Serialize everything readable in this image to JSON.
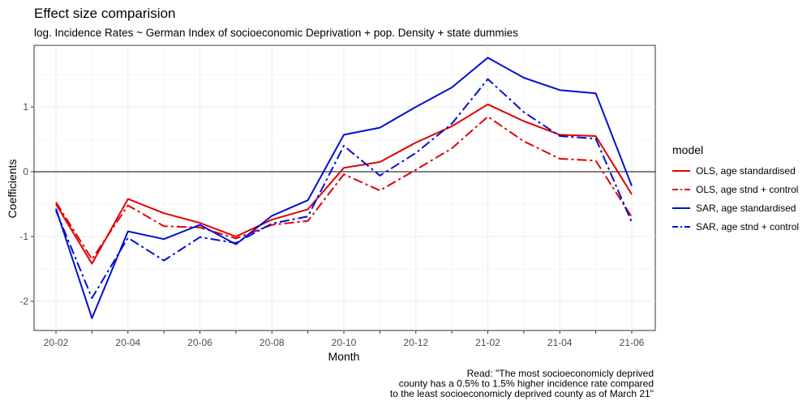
{
  "chart_data": {
    "type": "line",
    "title": "Effect size comparision",
    "subtitle": "log. Incidence Rates ~ German Index of socioeconomic Deprivation + pop. Density + state dummies",
    "xlabel": "Month",
    "ylabel": "Coefficients",
    "x": [
      "20-02",
      "20-03",
      "20-04",
      "20-05",
      "20-06",
      "20-07",
      "20-08",
      "20-09",
      "20-10",
      "20-11",
      "20-12",
      "21-01",
      "21-02",
      "21-03",
      "21-04",
      "21-05",
      "21-06"
    ],
    "xticks": [
      "20-02",
      "20-04",
      "20-06",
      "20-08",
      "20-10",
      "20-12",
      "21-02",
      "21-04",
      "21-06"
    ],
    "yticks": [
      -2,
      -1,
      0,
      1
    ],
    "ylim": [
      -2.45,
      1.95
    ],
    "grid": true,
    "reference_line": 0,
    "legend": {
      "title": "model",
      "position": "right"
    },
    "series": [
      {
        "name": "OLS, age standardised",
        "color": "#e00000",
        "dash": "solid",
        "values": [
          -0.5,
          -1.42,
          -0.42,
          -0.64,
          -0.79,
          -1.0,
          -0.74,
          -0.58,
          0.06,
          0.15,
          0.45,
          0.7,
          1.04,
          0.78,
          0.57,
          0.55,
          -0.35
        ]
      },
      {
        "name": "OLS, age stnd + control",
        "color": "#e00000",
        "dash": "dashdot",
        "values": [
          -0.47,
          -1.35,
          -0.52,
          -0.84,
          -0.86,
          -1.03,
          -0.82,
          -0.76,
          -0.04,
          -0.29,
          0.03,
          0.36,
          0.85,
          0.47,
          0.2,
          0.17,
          -0.7
        ]
      },
      {
        "name": "SAR, age standardised",
        "color": "#0010d0",
        "dash": "solid",
        "values": [
          -0.57,
          -2.26,
          -0.92,
          -1.04,
          -0.82,
          -1.12,
          -0.68,
          -0.44,
          0.57,
          0.68,
          1.0,
          1.3,
          1.76,
          1.45,
          1.26,
          1.21,
          -0.22
        ]
      },
      {
        "name": "SAR, age stnd + control",
        "color": "#0010d0",
        "dash": "dashdot",
        "values": [
          -0.6,
          -1.95,
          -1.02,
          -1.37,
          -1.01,
          -1.1,
          -0.8,
          -0.69,
          0.4,
          -0.06,
          0.29,
          0.74,
          1.43,
          0.92,
          0.55,
          0.51,
          -0.78
        ]
      }
    ],
    "caption": [
      "Read: \"The most socioeconomicly deprived",
      "county has a 0.5% to 1.5% higher incidence rate compared",
      "to the least socioeconomicly deprived county as of March 21\""
    ]
  }
}
